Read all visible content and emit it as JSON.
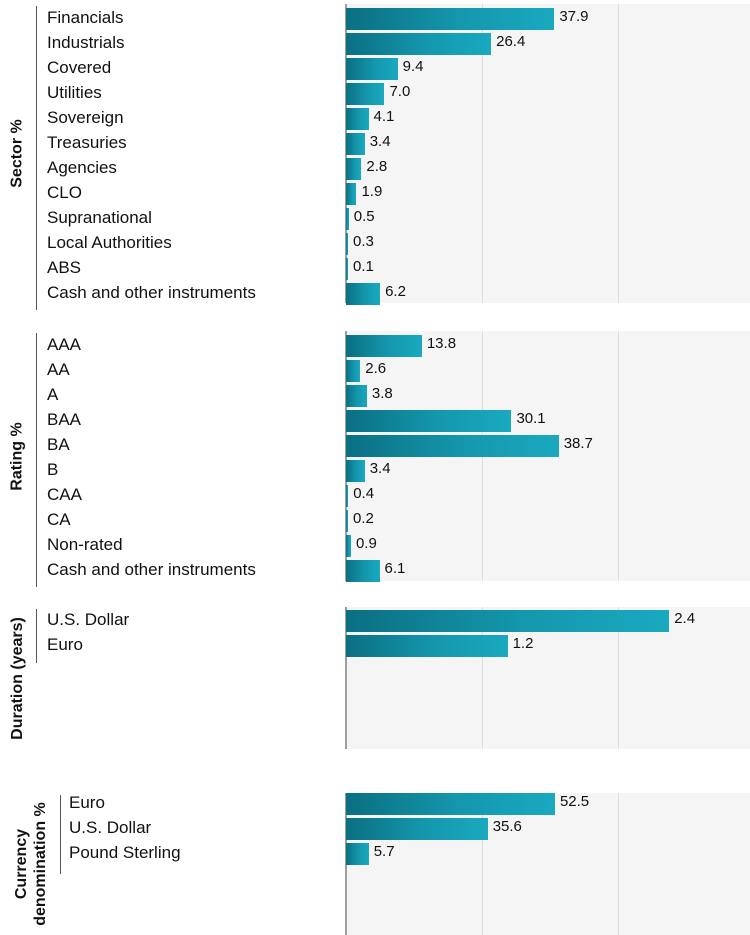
{
  "chart_data": [
    {
      "type": "bar",
      "orientation": "horizontal",
      "title": "Sector %",
      "categories": [
        "Financials",
        "Industrials",
        "Covered",
        "Utilities",
        "Sovereign",
        "Treasuries",
        "Agencies",
        "CLO",
        "Supranational",
        "Local Authorities",
        "ABS",
        "Cash and other instruments"
      ],
      "values": [
        37.9,
        26.4,
        9.4,
        7.0,
        4.1,
        3.4,
        2.8,
        1.9,
        0.5,
        0.3,
        0.1,
        6.2
      ],
      "labels": [
        "37.9",
        "26.4",
        "9.4",
        "7.0",
        "4.1",
        "3.4",
        "2.8",
        "1.9",
        "0.5",
        "0.3",
        "0.1",
        "6.2"
      ],
      "xlim": [
        0,
        73.5
      ],
      "grid": true
    },
    {
      "type": "bar",
      "orientation": "horizontal",
      "title": "Rating %",
      "categories": [
        "AAA",
        "AA",
        "A",
        "BAA",
        "BA",
        "B",
        "CAA",
        "CA",
        "Non-rated",
        "Cash and other instruments"
      ],
      "values": [
        13.8,
        2.6,
        3.8,
        30.1,
        38.7,
        3.4,
        0.4,
        0.2,
        0.9,
        6.1
      ],
      "labels": [
        "13.8",
        "2.6",
        "3.8",
        "30.1",
        "38.7",
        "3.4",
        "0.4",
        "0.2",
        "0.9",
        "6.1"
      ],
      "xlim": [
        0,
        73.5
      ],
      "grid": true
    },
    {
      "type": "bar",
      "orientation": "horizontal",
      "title": "Duration (years)",
      "categories": [
        "U.S. Dollar",
        "Euro"
      ],
      "values": [
        2.4,
        1.2
      ],
      "labels": [
        "2.4",
        "1.2"
      ],
      "xlim": [
        0,
        3.0
      ],
      "grid": true
    },
    {
      "type": "bar",
      "orientation": "horizontal",
      "title": "Currency denomination %",
      "categories": [
        "Euro",
        "U.S. Dollar",
        "Pound Sterling"
      ],
      "values": [
        52.5,
        35.6,
        5.7
      ],
      "labels": [
        "52.5",
        "35.6",
        "5.7"
      ],
      "xlim": [
        0,
        101.5
      ],
      "grid": true
    }
  ]
}
